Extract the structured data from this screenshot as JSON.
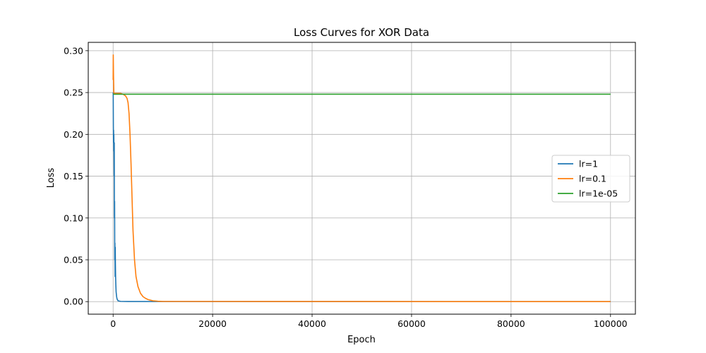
{
  "chart_data": {
    "type": "line",
    "title": "Loss Curves for XOR Data",
    "xlabel": "Epoch",
    "ylabel": "Loss",
    "xlim": [
      -5000,
      105000
    ],
    "ylim": [
      -0.015,
      0.31
    ],
    "xticks": [
      0,
      20000,
      40000,
      60000,
      80000,
      100000
    ],
    "yticks": [
      0.0,
      0.05,
      0.1,
      0.15,
      0.2,
      0.25,
      0.3
    ],
    "ytick_labels": [
      "0.00",
      "0.05",
      "0.10",
      "0.15",
      "0.20",
      "0.25",
      "0.30"
    ],
    "grid": true,
    "legend_position": "center-right",
    "series": [
      {
        "name": "lr=1",
        "color": "#1f77b4",
        "x": [
          0,
          20,
          50,
          80,
          100,
          130,
          150,
          180,
          200,
          230,
          260,
          300,
          330,
          360,
          400,
          430,
          460,
          500,
          550,
          600,
          700,
          800,
          1000,
          1500,
          3000,
          100000
        ],
        "y": [
          0.25,
          0.248,
          0.21,
          0.19,
          0.205,
          0.18,
          0.2,
          0.17,
          0.15,
          0.19,
          0.1,
          0.12,
          0.05,
          0.07,
          0.03,
          0.065,
          0.045,
          0.03,
          0.02,
          0.012,
          0.006,
          0.003,
          0.001,
          0.0003,
          0.0001,
          0.0
        ]
      },
      {
        "name": "lr=0.1",
        "color": "#ff7f0e",
        "x": [
          0,
          30,
          80,
          150,
          200,
          300,
          500,
          1000,
          1500,
          2000,
          2500,
          2800,
          3000,
          3200,
          3400,
          3600,
          3800,
          4000,
          4300,
          4600,
          5000,
          5500,
          6000,
          6500,
          7000,
          8000,
          9000,
          10000,
          100000
        ],
        "y": [
          0.265,
          0.295,
          0.27,
          0.25,
          0.249,
          0.249,
          0.249,
          0.249,
          0.249,
          0.248,
          0.246,
          0.243,
          0.238,
          0.225,
          0.2,
          0.165,
          0.125,
          0.085,
          0.05,
          0.03,
          0.018,
          0.01,
          0.006,
          0.004,
          0.0025,
          0.001,
          0.0005,
          0.0002,
          0.0
        ]
      },
      {
        "name": "lr=1e-05",
        "color": "#2ca02c",
        "x": [
          0,
          100000
        ],
        "y": [
          0.248,
          0.248
        ]
      }
    ]
  }
}
